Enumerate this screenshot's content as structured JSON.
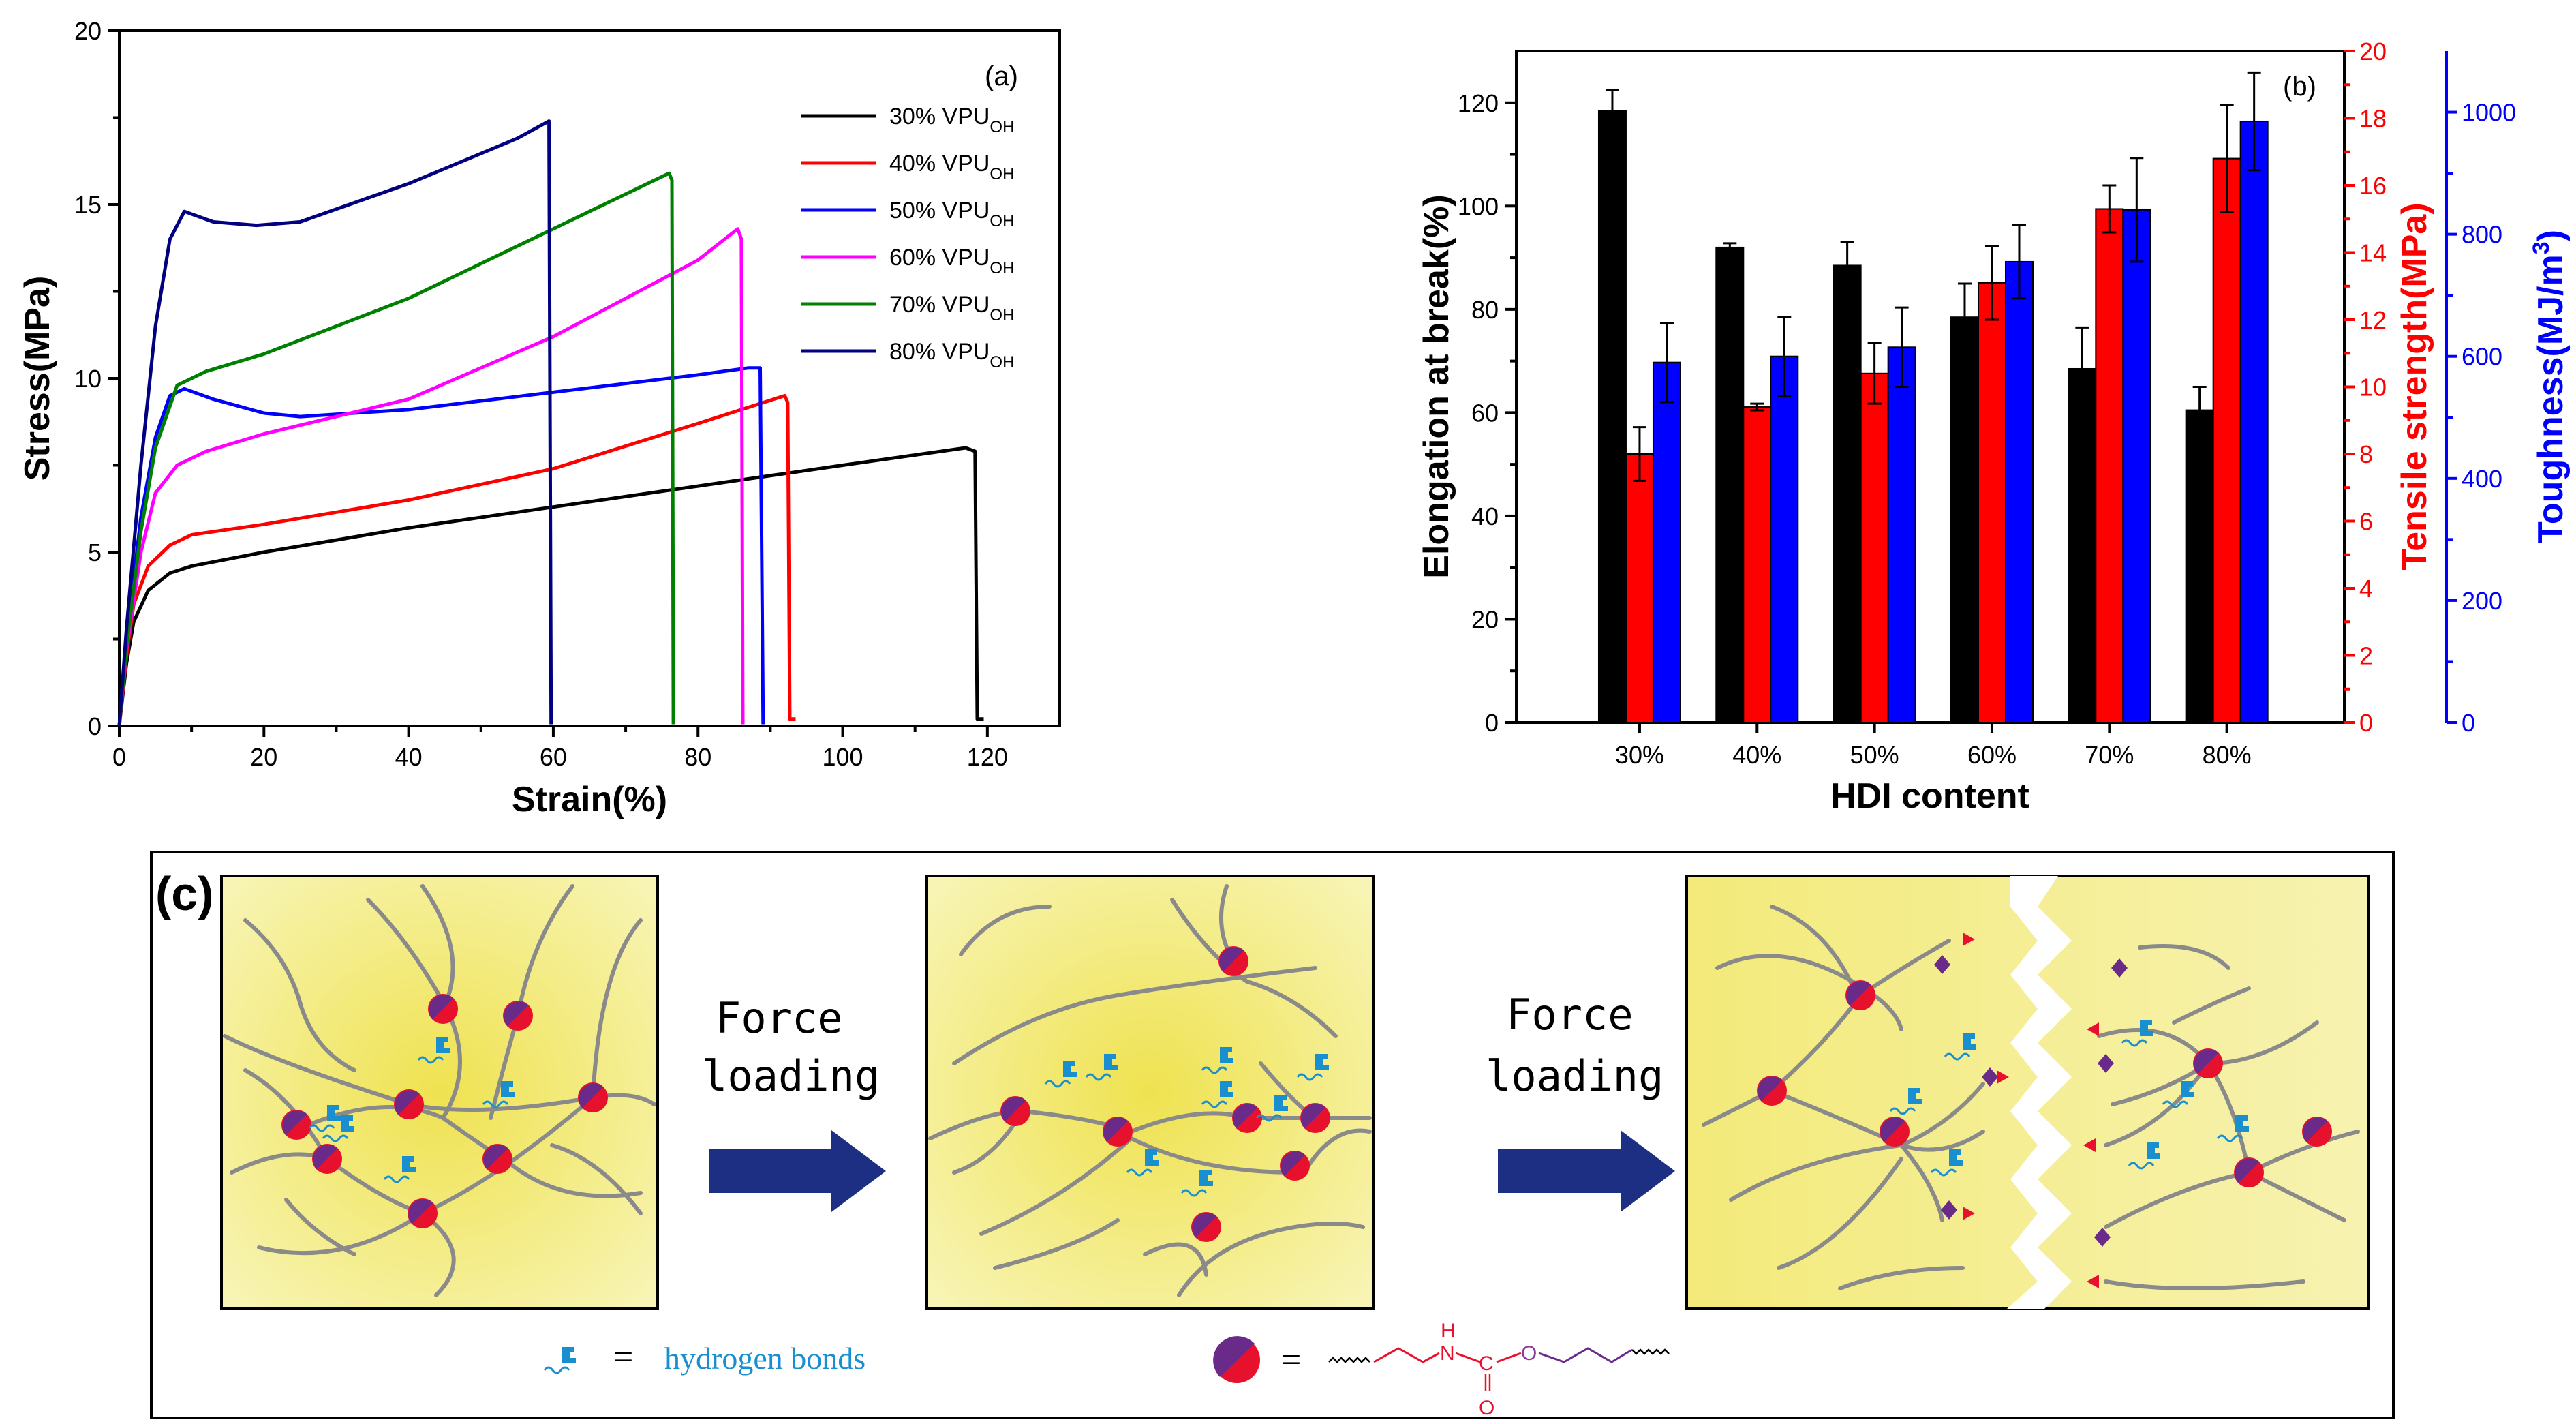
{
  "chart_data": [
    {
      "type": "line",
      "panel_label": "(a)",
      "title": "",
      "xlabel": "Strain(%)",
      "ylabel": "Stress(MPa)",
      "xlim": [
        0,
        130
      ],
      "ylim": [
        0,
        20
      ],
      "xticks": [
        0,
        20,
        40,
        60,
        80,
        100,
        120
      ],
      "yticks": [
        0,
        5,
        10,
        15,
        20
      ],
      "legend_position": "top-right",
      "series": [
        {
          "name": "30% VPU",
          "subscript": "OH",
          "color": "#000000",
          "points": [
            [
              0,
              0
            ],
            [
              1,
              1.8
            ],
            [
              2,
              3.0
            ],
            [
              4,
              3.9
            ],
            [
              7,
              4.4
            ],
            [
              10,
              4.6
            ],
            [
              20,
              5.0
            ],
            [
              40,
              5.7
            ],
            [
              60,
              6.3
            ],
            [
              80,
              6.9
            ],
            [
              100,
              7.5
            ],
            [
              117,
              8.0
            ],
            [
              118.3,
              7.9
            ],
            [
              118.6,
              0.2
            ],
            [
              119.5,
              0.2
            ]
          ]
        },
        {
          "name": "40% VPU",
          "subscript": "OH",
          "color": "#ff0000",
          "points": [
            [
              0,
              0
            ],
            [
              1,
              2.0
            ],
            [
              2,
              3.5
            ],
            [
              4,
              4.6
            ],
            [
              7,
              5.2
            ],
            [
              10,
              5.5
            ],
            [
              20,
              5.8
            ],
            [
              40,
              6.5
            ],
            [
              60,
              7.4
            ],
            [
              80,
              8.7
            ],
            [
              92,
              9.5
            ],
            [
              92.4,
              9.3
            ],
            [
              92.7,
              0.2
            ],
            [
              93.5,
              0.2
            ]
          ]
        },
        {
          "name": "50% VPU",
          "subscript": "OH",
          "color": "#0000ff",
          "points": [
            [
              0,
              0
            ],
            [
              1,
              2.5
            ],
            [
              3,
              6.0
            ],
            [
              5,
              8.3
            ],
            [
              7,
              9.5
            ],
            [
              9,
              9.7
            ],
            [
              13,
              9.4
            ],
            [
              20,
              9.0
            ],
            [
              25,
              8.9
            ],
            [
              40,
              9.1
            ],
            [
              60,
              9.6
            ],
            [
              80,
              10.1
            ],
            [
              87,
              10.3
            ],
            [
              88.6,
              10.3
            ],
            [
              89.0,
              0.05
            ]
          ]
        },
        {
          "name": "60% VPU",
          "subscript": "OH",
          "color": "#ff00ff",
          "points": [
            [
              0,
              0
            ],
            [
              1,
              2.2
            ],
            [
              3,
              5.0
            ],
            [
              5,
              6.7
            ],
            [
              8,
              7.5
            ],
            [
              12,
              7.9
            ],
            [
              20,
              8.4
            ],
            [
              40,
              9.4
            ],
            [
              60,
              11.2
            ],
            [
              80,
              13.4
            ],
            [
              85.5,
              14.3
            ],
            [
              86,
              14.0
            ],
            [
              86.2,
              0.05
            ]
          ]
        },
        {
          "name": "70% VPU",
          "subscript": "OH",
          "color": "#008000",
          "points": [
            [
              0,
              0
            ],
            [
              1,
              2.3
            ],
            [
              3,
              5.6
            ],
            [
              5,
              8.0
            ],
            [
              8,
              9.8
            ],
            [
              12,
              10.2
            ],
            [
              20,
              10.7
            ],
            [
              40,
              12.3
            ],
            [
              60,
              14.3
            ],
            [
              76,
              15.9
            ],
            [
              76.4,
              15.7
            ],
            [
              76.6,
              0.05
            ]
          ]
        },
        {
          "name": "80% VPU",
          "subscript": "OH",
          "color": "#000080",
          "points": [
            [
              0,
              0
            ],
            [
              1,
              2.8
            ],
            [
              3,
              7.5
            ],
            [
              5,
              11.5
            ],
            [
              7,
              14.0
            ],
            [
              9,
              14.8
            ],
            [
              13,
              14.5
            ],
            [
              19,
              14.4
            ],
            [
              25,
              14.5
            ],
            [
              40,
              15.6
            ],
            [
              55,
              16.9
            ],
            [
              59.4,
              17.4
            ],
            [
              59.7,
              0.05
            ]
          ]
        }
      ]
    },
    {
      "type": "bar",
      "panel_label": "(b)",
      "title": "",
      "xlabel": "HDI content",
      "categories": [
        "30%",
        "40%",
        "50%",
        "60%",
        "70%",
        "80%"
      ],
      "axes": {
        "left": {
          "label": "Elongation at break(%)",
          "ylim": [
            0,
            130
          ],
          "ticks": [
            0,
            20,
            40,
            60,
            80,
            100,
            120
          ],
          "color": "#000000"
        },
        "right1": {
          "label": "Tensile strength(MPa)",
          "ylim": [
            0,
            20
          ],
          "ticks": [
            0,
            2,
            4,
            6,
            8,
            10,
            12,
            14,
            16,
            18,
            20
          ],
          "color": "#ff0000"
        },
        "right2": {
          "label": "Toughness(MJ/m³)",
          "ylim": [
            0,
            1100
          ],
          "ticks": [
            0,
            200,
            400,
            600,
            800,
            1000
          ],
          "color": "#0000ff"
        }
      },
      "series": [
        {
          "name": "Elongation at break",
          "axis": "left",
          "color": "#000000",
          "values": [
            118.5,
            92.0,
            88.5,
            78.5,
            68.5,
            60.5
          ],
          "errors": [
            4.0,
            0.8,
            4.5,
            6.5,
            8.0,
            4.5
          ]
        },
        {
          "name": "Tensile strength",
          "axis": "right1",
          "color": "#ff0000",
          "values": [
            8.0,
            9.4,
            10.4,
            13.1,
            15.3,
            16.8
          ],
          "errors": [
            0.8,
            0.1,
            0.9,
            1.1,
            0.7,
            1.6
          ]
        },
        {
          "name": "Toughness",
          "axis": "right2",
          "color": "#0000ff",
          "values": [
            590,
            600,
            615,
            755,
            840,
            985
          ],
          "errors": [
            65,
            65,
            65,
            60,
            85,
            80
          ]
        }
      ]
    }
  ],
  "panel_c": {
    "label": "(c)",
    "arrow1": {
      "line1": "Force",
      "line2": "loading"
    },
    "arrow2": {
      "line1": "Force",
      "line2": "loading"
    },
    "legend_hbond": {
      "equals": "=",
      "text": "hydrogen bonds"
    },
    "legend_urethane": {
      "equals": "=",
      "h": "H",
      "n": "N",
      "c": "C",
      "o_ester": "O",
      "o_carbonyl": "O"
    }
  },
  "colors": {
    "panel_bg": "#f2ec83",
    "crosslink_red": "#e8112d",
    "crosslink_purple": "#6a2a8a",
    "arrow": "#1c2f82",
    "hbond": "#1a8fd0"
  }
}
